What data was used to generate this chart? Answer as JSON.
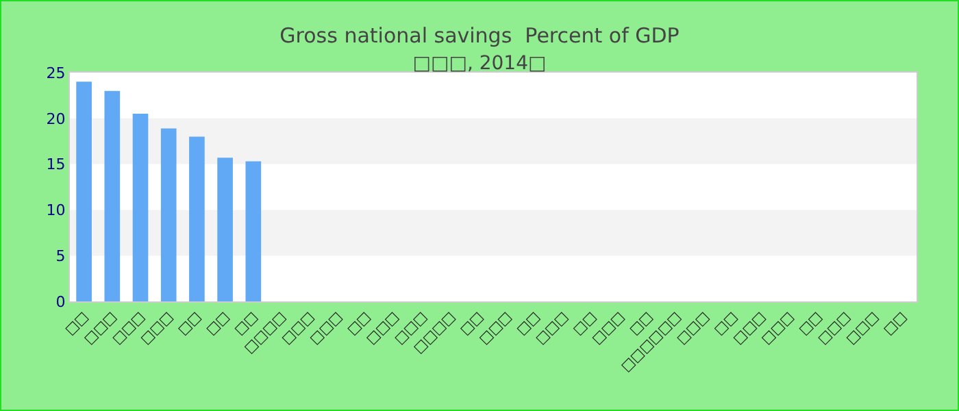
{
  "chart_data": {
    "type": "bar",
    "title": "Gross national savings  Percent of GDP",
    "subtitle": "□□□, 2014□",
    "categories": [
      "□□",
      "□□□",
      "□□□",
      "□□□",
      "□□",
      "□□",
      "□□",
      "□□□□",
      "□□□",
      "□□□",
      "□□",
      "□□□",
      "□□□",
      "□□□□",
      "□□",
      "□□□",
      "□□",
      "□□□",
      "□□",
      "□□□",
      "□□",
      "□□□□□□",
      "□□□",
      "□□",
      "□□□",
      "□□□",
      "□□",
      "□□□",
      "□□□",
      "□□"
    ],
    "values": [
      24,
      23,
      20.5,
      18.9,
      18,
      15.7,
      15.3,
      null,
      null,
      null,
      null,
      null,
      null,
      null,
      null,
      null,
      null,
      null,
      null,
      null,
      null,
      null,
      null,
      null,
      null,
      null,
      null,
      null,
      null,
      null
    ],
    "color": "#61a8f5",
    "ylim": [
      0,
      25
    ],
    "yticks": [
      0,
      5,
      10,
      15,
      20,
      25
    ],
    "bands": [
      {
        "axis": "y",
        "from": 5,
        "to": 10,
        "color": "#f3f3f3"
      },
      {
        "axis": "y",
        "from": 15,
        "to": 20,
        "color": "#f3f3f3"
      }
    ],
    "legend": false
  }
}
